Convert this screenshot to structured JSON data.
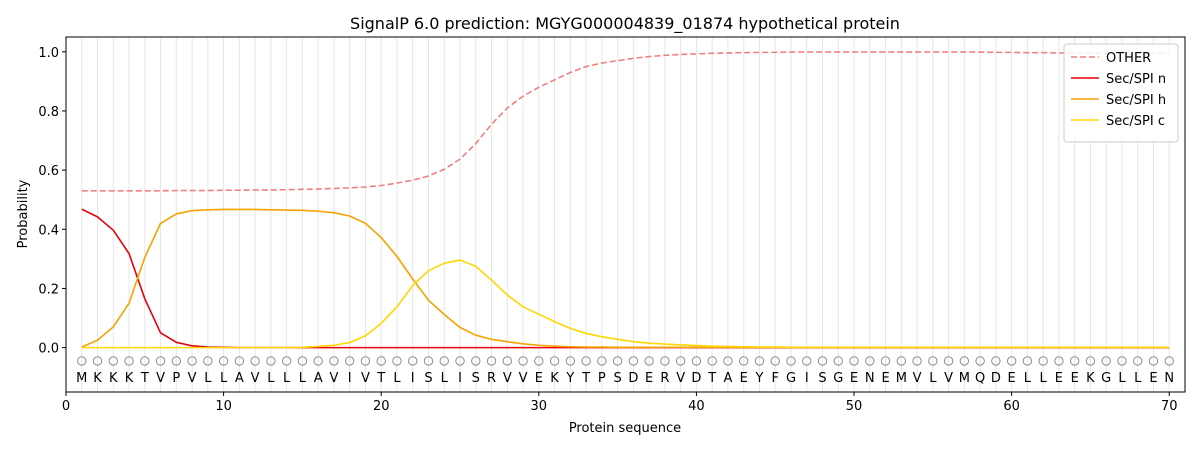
{
  "chart_data": {
    "type": "line",
    "title": "SignalP 6.0 prediction: MGYG000004839_01874 hypothetical protein",
    "xlabel": "Protein sequence",
    "ylabel": "Probability",
    "xlim": [
      0,
      71
    ],
    "ylim": [
      -0.15,
      1.05
    ],
    "xticks": [
      0,
      10,
      20,
      30,
      40,
      50,
      60,
      70
    ],
    "yticks": [
      0.0,
      0.2,
      0.4,
      0.6,
      0.8,
      1.0
    ],
    "sequence": [
      "M",
      "K",
      "K",
      "K",
      "T",
      "V",
      "P",
      "V",
      "L",
      "L",
      "A",
      "V",
      "L",
      "L",
      "L",
      "A",
      "V",
      "I",
      "V",
      "T",
      "L",
      "I",
      "S",
      "L",
      "I",
      "S",
      "R",
      "V",
      "V",
      "E",
      "K",
      "Y",
      "T",
      "P",
      "S",
      "D",
      "E",
      "R",
      "V",
      "D",
      "T",
      "A",
      "E",
      "Y",
      "F",
      "G",
      "I",
      "S",
      "G",
      "E",
      "N",
      "E",
      "M",
      "V",
      "L",
      "V",
      "M",
      "Q",
      "D",
      "E",
      "L",
      "L",
      "E",
      "E",
      "K",
      "G",
      "L",
      "L",
      "E",
      "N"
    ],
    "x": [
      1,
      2,
      3,
      4,
      5,
      6,
      7,
      8,
      9,
      10,
      11,
      12,
      13,
      14,
      15,
      16,
      17,
      18,
      19,
      20,
      21,
      22,
      23,
      24,
      25,
      26,
      27,
      28,
      29,
      30,
      31,
      32,
      33,
      34,
      35,
      36,
      37,
      38,
      39,
      40,
      41,
      42,
      43,
      44,
      45,
      46,
      47,
      48,
      49,
      50,
      51,
      52,
      53,
      54,
      55,
      56,
      57,
      58,
      59,
      60,
      61,
      62,
      63,
      64,
      65,
      66,
      67,
      68,
      69,
      70
    ],
    "legend_position": "top-right",
    "series": [
      {
        "name": "OTHER",
        "color": "#f08080",
        "dashed": true,
        "values": [
          0.53,
          0.53,
          0.53,
          0.53,
          0.53,
          0.53,
          0.531,
          0.531,
          0.531,
          0.532,
          0.532,
          0.533,
          0.533,
          0.534,
          0.535,
          0.536,
          0.538,
          0.54,
          0.543,
          0.548,
          0.556,
          0.566,
          0.58,
          0.603,
          0.637,
          0.69,
          0.755,
          0.81,
          0.85,
          0.88,
          0.905,
          0.93,
          0.95,
          0.962,
          0.97,
          0.978,
          0.984,
          0.988,
          0.991,
          0.993,
          0.995,
          0.996,
          0.997,
          0.998,
          0.998,
          0.999,
          0.999,
          0.999,
          0.999,
          0.999,
          0.999,
          0.999,
          0.999,
          0.999,
          0.999,
          0.999,
          0.999,
          0.999,
          0.998,
          0.998,
          0.997,
          0.997,
          0.996,
          0.996,
          0.995,
          0.995,
          0.995,
          0.995,
          0.995,
          0.995
        ]
      },
      {
        "name": "Sec/SPI n",
        "color": "#e8000b",
        "dashed": false,
        "values": [
          0.468,
          0.442,
          0.397,
          0.318,
          0.165,
          0.05,
          0.018,
          0.006,
          0.002,
          0.001,
          0,
          0,
          0,
          0,
          0,
          0,
          0,
          0,
          0,
          0,
          0,
          0,
          0,
          0,
          0,
          0,
          0,
          0,
          0,
          0,
          0,
          0,
          0,
          0,
          0,
          0,
          0,
          0,
          0,
          0,
          0,
          0,
          0,
          0,
          0,
          0,
          0,
          0,
          0,
          0,
          0,
          0,
          0,
          0,
          0,
          0,
          0,
          0,
          0,
          0,
          0,
          0,
          0,
          0,
          0,
          0,
          0,
          0,
          0,
          0
        ]
      },
      {
        "name": "Sec/SPI h",
        "color": "#f5a300",
        "dashed": false,
        "values": [
          0.002,
          0.025,
          0.07,
          0.15,
          0.305,
          0.42,
          0.452,
          0.463,
          0.466,
          0.467,
          0.467,
          0.467,
          0.466,
          0.465,
          0.464,
          0.461,
          0.456,
          0.445,
          0.42,
          0.372,
          0.308,
          0.232,
          0.16,
          0.112,
          0.068,
          0.042,
          0.028,
          0.02,
          0.013,
          0.008,
          0.005,
          0.003,
          0.002,
          0.002,
          0.001,
          0.001,
          0.001,
          0.001,
          0.001,
          0.001,
          0.001,
          0.001,
          0.001,
          0.001,
          0.001,
          0.001,
          0.001,
          0.001,
          0.001,
          0.001,
          0.001,
          0.001,
          0.001,
          0.001,
          0.001,
          0.001,
          0.001,
          0.001,
          0.001,
          0.001,
          0.001,
          0.001,
          0.001,
          0.001,
          0.001,
          0.001,
          0.001,
          0.001,
          0.001,
          0.001
        ]
      },
      {
        "name": "Sec/SPI c",
        "color": "#ffd700",
        "dashed": false,
        "values": [
          0,
          0,
          0,
          0,
          0,
          0,
          0,
          0,
          0,
          0,
          0,
          0,
          0,
          0,
          0.001,
          0.004,
          0.008,
          0.017,
          0.04,
          0.082,
          0.138,
          0.21,
          0.26,
          0.285,
          0.296,
          0.275,
          0.228,
          0.178,
          0.138,
          0.113,
          0.088,
          0.065,
          0.048,
          0.037,
          0.028,
          0.02,
          0.015,
          0.012,
          0.009,
          0.007,
          0.005,
          0.004,
          0.003,
          0.002,
          0.002,
          0.001,
          0.001,
          0.001,
          0.001,
          0.001,
          0.001,
          0.001,
          0.001,
          0.001,
          0.001,
          0.001,
          0.001,
          0.001,
          0.001,
          0.001,
          0.001,
          0.001,
          0.001,
          0.001,
          0.001,
          0.001,
          0.001,
          0.001,
          0.001,
          0.001
        ]
      }
    ]
  }
}
